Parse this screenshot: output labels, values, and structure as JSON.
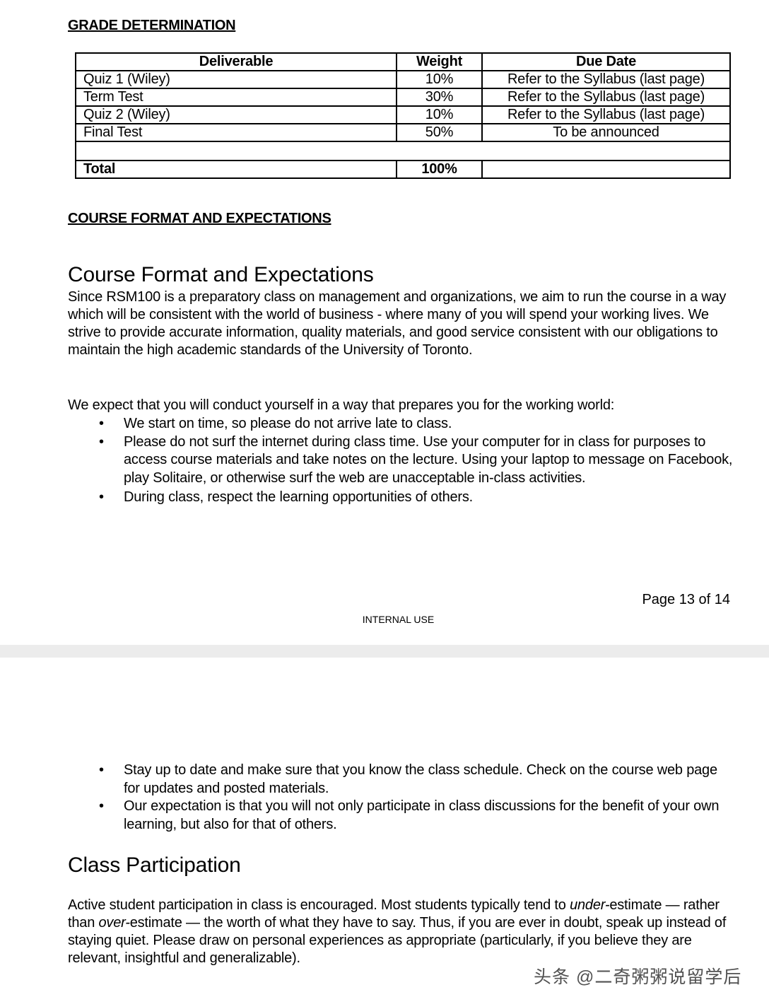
{
  "page1": {
    "grade_heading": "GRADE DETERMINATION",
    "table": {
      "header": [
        "Deliverable",
        "Weight",
        "Due Date"
      ],
      "rows": [
        [
          "Quiz 1 (Wiley)",
          "10%",
          "Refer to the Syllabus (last page)"
        ],
        [
          "Term Test",
          "30%",
          "Refer to the Syllabus (last page)"
        ],
        [
          "Quiz 2 (Wiley)",
          "10%",
          "Refer to the Syllabus (last page)"
        ],
        [
          "Final Test",
          "50%",
          "To be announced"
        ]
      ],
      "total": [
        "Total",
        "100%"
      ]
    },
    "format_heading": "COURSE FORMAT AND EXPECTATIONS",
    "title": "Course Format and Expectations",
    "intro": "Since RSM100 is a preparatory class on management and organizations, we aim to run the course in a way which will be consistent with the world of business - where many of you will spend your working lives. We strive to provide accurate information, quality materials, and good service consistent with our obligations to maintain the high academic standards of the University of Toronto.",
    "expect": "We expect that you will conduct yourself in a way that prepares you for the working world:",
    "bullets": [
      "We start on time, so please do not arrive late to class.",
      "Please do not surf the internet during class time. Use your computer for in class for purposes to access course materials and take notes on the lecture. Using your laptop to message on Facebook, play Solitaire, or otherwise surf the web are unacceptable in-class activities.",
      "During class, respect the learning opportunities of others."
    ],
    "page_number": "Page 13 of 14",
    "footer": "INTERNAL USE"
  },
  "page2": {
    "bullets": [
      "Stay up to date and make sure that you know the class schedule. Check on the course web page for updates and posted materials.",
      "Our expectation is that you will not only participate in class discussions for the benefit of your own learning, but also for that of others."
    ],
    "title": "Class Participation",
    "paragraph": [
      "Active student participation in class is encouraged. Most students typically tend to ",
      "under-",
      "estimate — rather than ",
      "over-",
      "estimate — the worth of what they have to say. Thus, if you are ever in doubt, speak up instead of staying quiet. Please draw on personal experiences as appropriate (particularly, if you believe they are relevant, insightful and generalizable)."
    ]
  },
  "watermark": "头条 @二奇粥粥说留学后"
}
